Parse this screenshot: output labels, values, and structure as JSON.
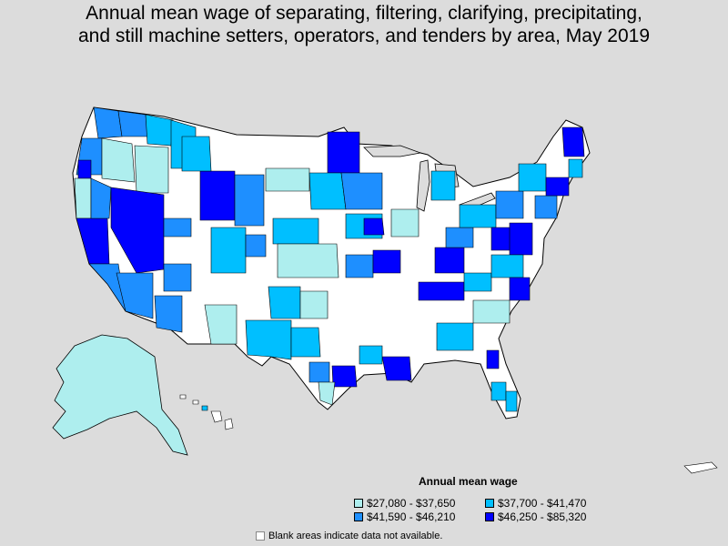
{
  "title": {
    "line1": "Annual mean wage of separating, filtering, clarifying, precipitating,",
    "line2": "and still machine setters, operators, and tenders by area, May 2019"
  },
  "legend": {
    "title": "Annual mean wage",
    "items": [
      {
        "label": "$27,080 - $37,650",
        "color": "#aeeeee"
      },
      {
        "label": "$37,700 - $41,470",
        "color": "#00bfff"
      },
      {
        "label": "$41,590 - $46,210",
        "color": "#1e8fff"
      },
      {
        "label": "$46,250 - $85,320",
        "color": "#0000ff"
      }
    ]
  },
  "note": "Blank areas indicate data not available.",
  "colors": {
    "background": "#dcdcdc",
    "blank": "#ffffff",
    "border": "#000000"
  }
}
